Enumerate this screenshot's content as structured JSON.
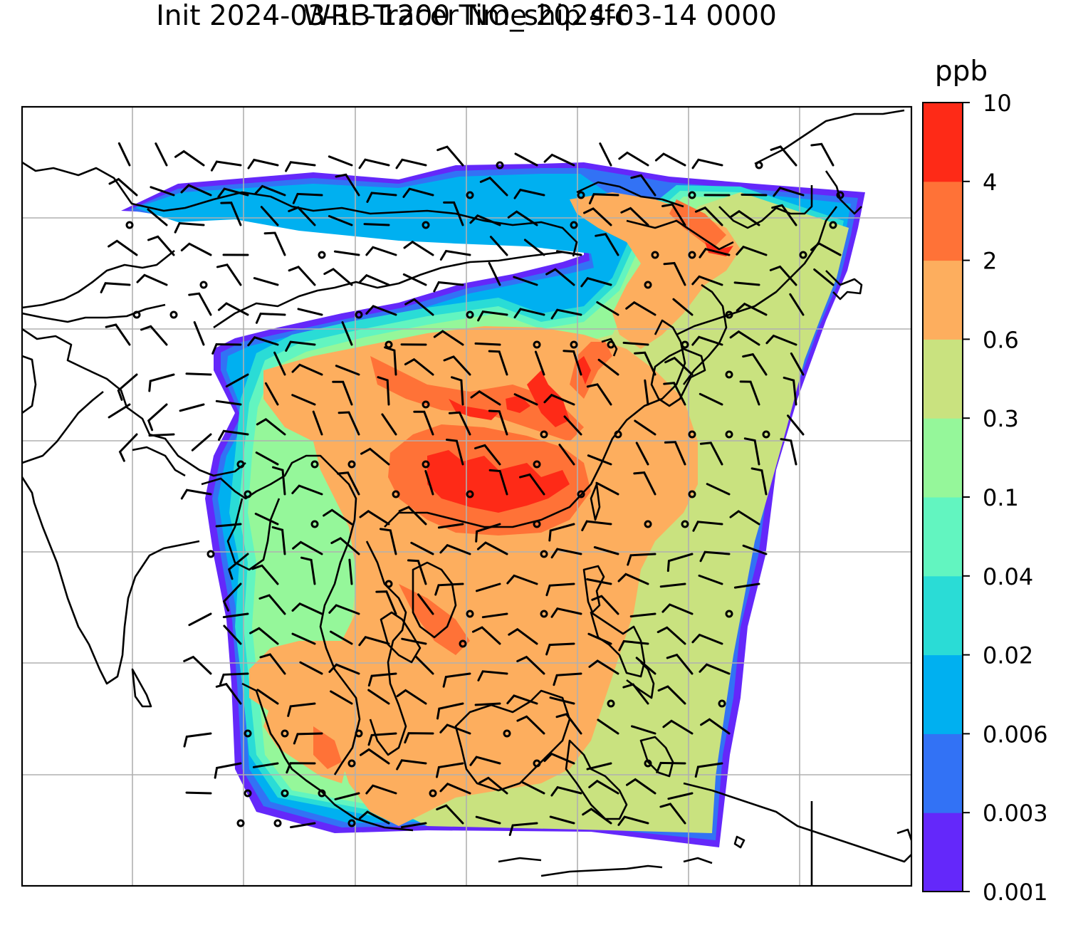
{
  "title": {
    "line1": "WRF-Tracer NO_ship sfc",
    "line2": "Init 2024-03-13 1200 Time 2024-03-14 0000"
  },
  "colorbar": {
    "unit": "ppb",
    "ticks": [
      "0.001",
      "0.003",
      "0.006",
      "0.02",
      "0.04",
      "0.1",
      "0.3",
      "0.6",
      "2",
      "4",
      "10"
    ],
    "colors": [
      "#6428fa",
      "#3272f5",
      "#00b0f0",
      "#2adcd6",
      "#62f5c0",
      "#95f79a",
      "#c9e27f",
      "#fdae5e",
      "#ff7237",
      "#fe2a17"
    ]
  },
  "map": {
    "overlays": [
      "gridlines",
      "coastlines",
      "wind-barbs"
    ],
    "colors": {
      "gridline": "#b0b0b0",
      "coastline": "#000000"
    }
  }
}
